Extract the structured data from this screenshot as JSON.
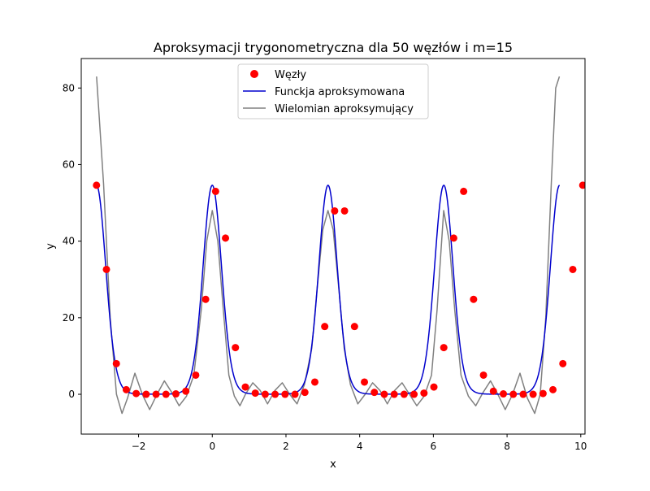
{
  "chart_data": {
    "type": "line",
    "title": "Aproksymacji trygonometryczna dla 50 węzłów i m=15",
    "xlabel": "x",
    "ylabel": "y",
    "xlim": [
      -3.5558,
      10.1148
    ],
    "ylim": [
      -10.4,
      87.7
    ],
    "xticks": [
      -2,
      0,
      2,
      4,
      6,
      8,
      10
    ],
    "yticks": [
      0,
      20,
      40,
      60,
      80
    ],
    "grid": false,
    "legend_position": "top-center",
    "legend": [
      {
        "label": "Węzły",
        "marker": "dot",
        "color": "#ff0000"
      },
      {
        "label": "Funckja aproksymowana",
        "marker": "line",
        "color": "#0000cd"
      },
      {
        "label": "Wielomian aproksymujący",
        "marker": "line",
        "color": "#808080"
      }
    ],
    "series": [
      {
        "name": "Węzły",
        "kind": "scatter",
        "color": "#ff0000",
        "x": [
          -3.142,
          -2.872,
          -2.603,
          -2.334,
          -2.065,
          -1.795,
          -1.526,
          -1.257,
          -0.988,
          -0.718,
          -0.449,
          -0.18,
          0.09,
          0.359,
          0.628,
          0.898,
          1.167,
          1.436,
          1.705,
          1.975,
          2.244,
          2.513,
          2.783,
          3.052,
          3.321,
          3.59,
          3.86,
          4.129,
          4.398,
          4.667,
          4.937,
          5.206,
          5.475,
          5.745,
          6.014,
          6.283,
          6.552,
          6.822,
          7.091,
          7.36,
          7.629,
          7.899,
          8.168,
          8.437,
          8.706,
          8.976,
          9.245,
          9.514,
          9.784,
          10.053
        ],
        "y": [
          54.6,
          32.6,
          8.0,
          1.2,
          0.2,
          0.0,
          0.0,
          0.0,
          0.1,
          0.8,
          5.0,
          24.8,
          53.0,
          40.8,
          12.2,
          1.9,
          0.3,
          0.0,
          0.0,
          0.0,
          0.0,
          0.5,
          3.2,
          17.7,
          47.9,
          47.9,
          17.7,
          3.2,
          0.5,
          0.0,
          0.0,
          0.0,
          0.0,
          0.3,
          1.9,
          12.2,
          40.8,
          53.0,
          24.8,
          5.0,
          0.8,
          0.1,
          0.0,
          0.0,
          0.0,
          0.2,
          1.2,
          8.0,
          32.6,
          54.6
        ]
      },
      {
        "name": "Funckja aproksymowana",
        "kind": "line",
        "color": "#0000cd",
        "formula": "exp(4*cos(2x))",
        "x_range": [
          -3.1416,
          9.4248
        ]
      },
      {
        "name": "Wielomian aproksymujący",
        "kind": "line",
        "color": "#808080",
        "x": [
          -3.14,
          -2.95,
          -2.77,
          -2.6,
          -2.45,
          -2.3,
          -2.1,
          -1.9,
          -1.7,
          -1.5,
          -1.3,
          -1.1,
          -0.9,
          -0.7,
          -0.5,
          -0.3,
          -0.15,
          0.0,
          0.15,
          0.3,
          0.45,
          0.6,
          0.75,
          0.9,
          1.1,
          1.3,
          1.5,
          1.7,
          1.9,
          2.1,
          2.3,
          2.5,
          2.7,
          2.85,
          3.0,
          3.14,
          3.28,
          3.43,
          3.58,
          3.75,
          3.95,
          4.15,
          4.35,
          4.55,
          4.75,
          4.95,
          5.15,
          5.35,
          5.55,
          5.75,
          5.95,
          6.1,
          6.28,
          6.43,
          6.58,
          6.75,
          6.95,
          7.15,
          7.35,
          7.55,
          7.75,
          7.95,
          8.15,
          8.35,
          8.55,
          8.75,
          8.9,
          9.05,
          9.2,
          9.32,
          9.42
        ],
        "y": [
          83.0,
          55.0,
          20.0,
          0.0,
          -5.0,
          -1.0,
          5.5,
          0.0,
          -4.0,
          0.0,
          3.5,
          0.5,
          -3.0,
          -0.5,
          5.0,
          22.0,
          40.0,
          48.0,
          40.0,
          22.0,
          5.0,
          -0.5,
          -3.0,
          0.0,
          3.0,
          1.0,
          -2.5,
          1.0,
          3.0,
          0.0,
          -2.5,
          2.5,
          12.0,
          28.0,
          43.0,
          48.0,
          43.0,
          28.0,
          12.0,
          2.5,
          -2.5,
          0.0,
          3.0,
          1.0,
          -2.5,
          1.0,
          3.0,
          0.0,
          -3.0,
          -0.5,
          5.0,
          22.0,
          48.0,
          40.0,
          22.0,
          5.0,
          -0.5,
          -3.0,
          0.5,
          3.5,
          0.0,
          -4.0,
          0.0,
          5.5,
          -1.0,
          -5.0,
          0.0,
          20.0,
          55.0,
          80.0,
          83.0
        ]
      }
    ]
  },
  "colors": {
    "axes": "#000000",
    "background": "#ffffff"
  }
}
